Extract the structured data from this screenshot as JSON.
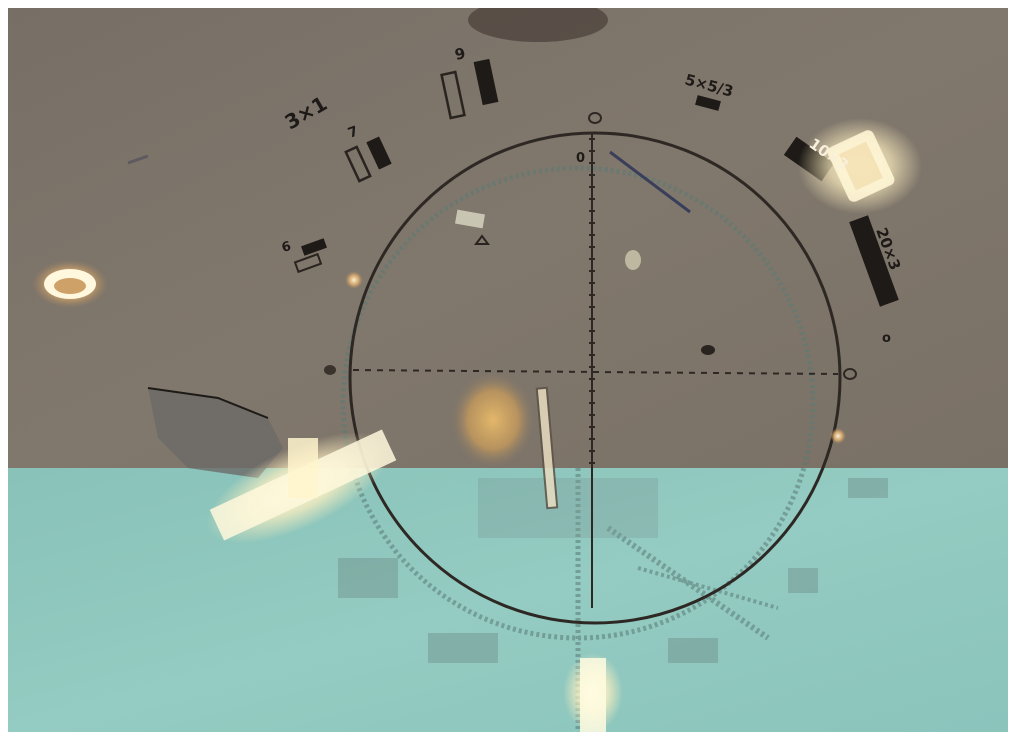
{
  "image": {
    "subject": "phase-contrast-micrograph-with-graticule",
    "colors": {
      "field_top": "#7d7469",
      "field_bottom": "#8ec7be",
      "graticule": "#2b2623",
      "crystal_glow": "#fff3c8",
      "debris": "#c9a15a"
    }
  },
  "graticule_labels": {
    "label_3x1": "3×1",
    "label_7": "7",
    "label_9": "9",
    "label_5x5_3": "5×5/3",
    "label_10x3": "10×3",
    "label_20x3": "20×3",
    "label_6": "6",
    "label_0": "0",
    "label_o": "o"
  }
}
